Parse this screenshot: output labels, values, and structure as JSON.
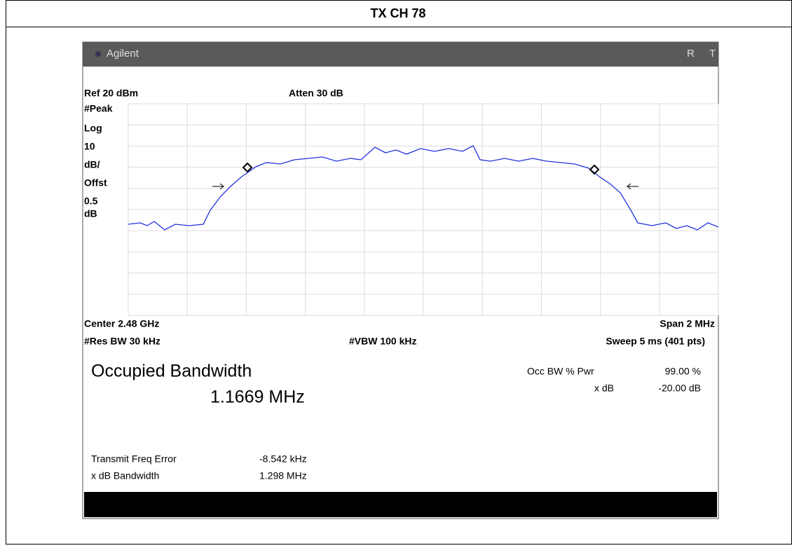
{
  "title": "TX CH 78",
  "header": {
    "brand": "Agilent",
    "status": [
      "R",
      "T"
    ]
  },
  "settings": {
    "ref": "Ref 20 dBm",
    "atten": "Atten 30 dB",
    "scale": [
      "#Peak",
      "Log",
      "10",
      "dB/",
      "Offst",
      "0.5",
      "dB"
    ],
    "center": "Center 2.48 GHz",
    "span": "Span 2 MHz",
    "rbw": "#Res BW 30 kHz",
    "vbw": "#VBW 100 kHz",
    "sweep": "Sweep 5 ms (401 pts)"
  },
  "measurement": {
    "title": "Occupied Bandwidth",
    "value": "1.1669 MHz",
    "occ_label": "Occ BW % Pwr",
    "occ_value": "99.00 %",
    "xdb_label": "x dB",
    "xdb_value": "-20.00 dB",
    "rows": [
      [
        "Transmit Freq Error",
        "-8.542 kHz"
      ],
      [
        "x dB Bandwidth",
        "1.298 MHz"
      ]
    ]
  }
}
